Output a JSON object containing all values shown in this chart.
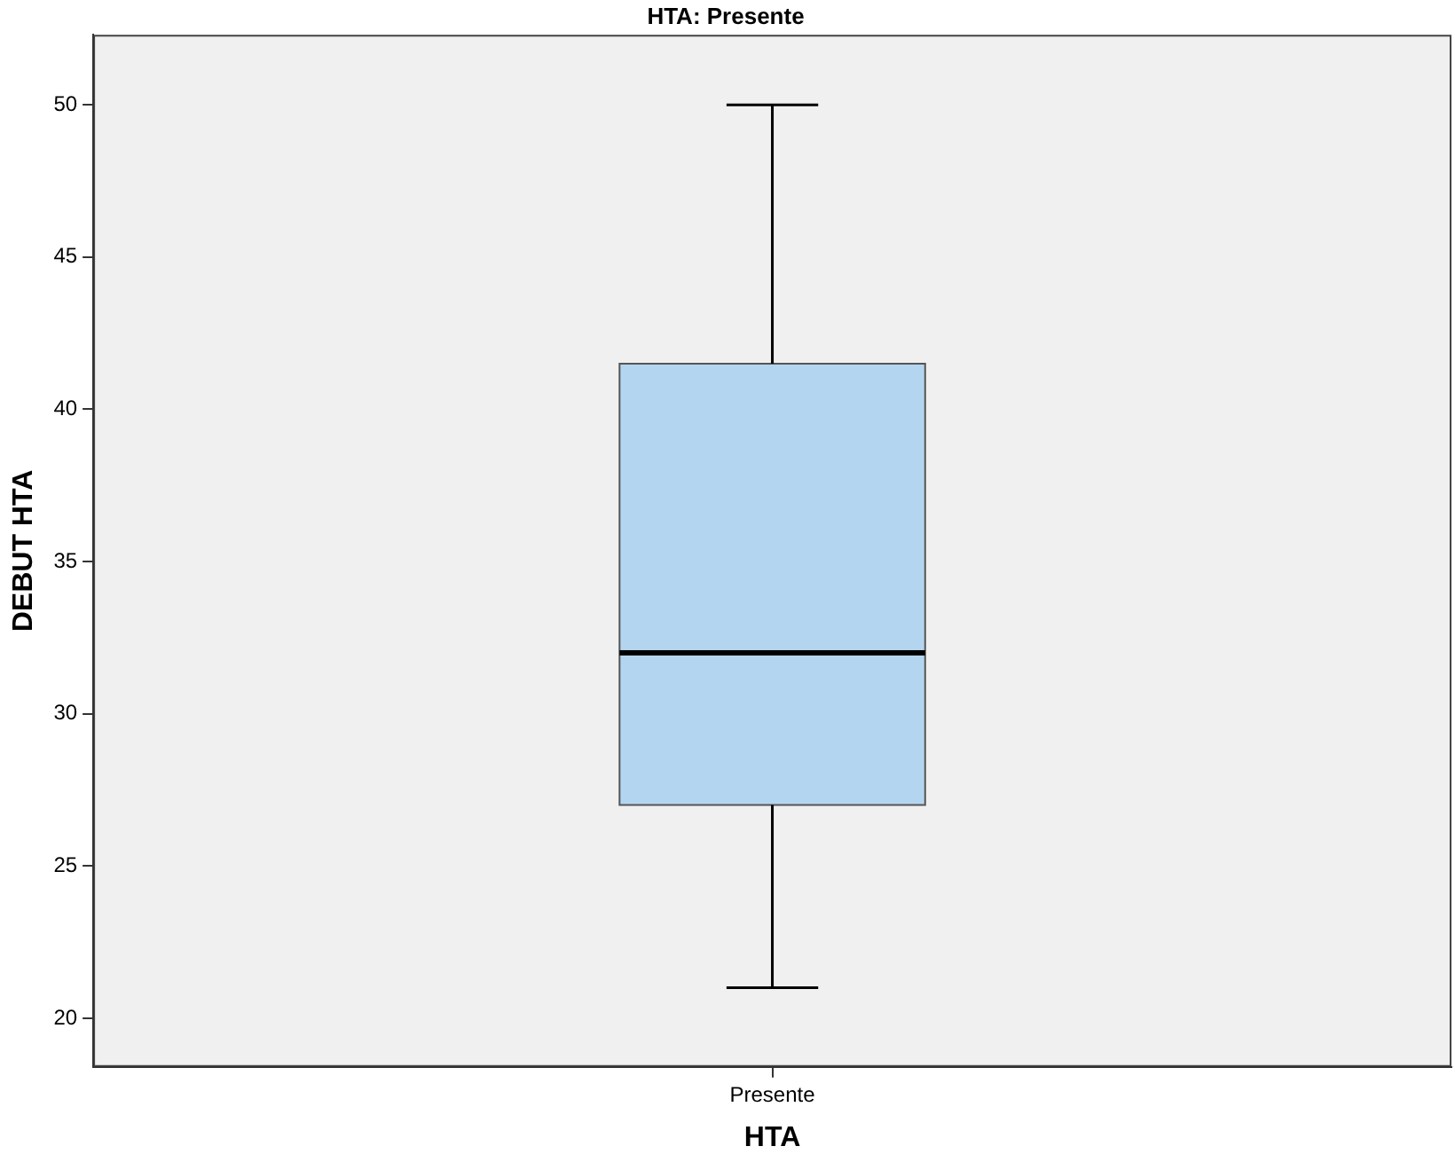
{
  "chart_data": {
    "type": "box",
    "title": "HTA: Presente",
    "xlabel": "HTA",
    "ylabel": "DEBUT HTA",
    "categories": [
      "Presente"
    ],
    "boxes": [
      {
        "low": 21,
        "q1": 27,
        "median": 32,
        "q3": 41.5,
        "high": 50
      }
    ],
    "color": "#b4d5f0",
    "ylim": [
      18.4,
      52.3
    ],
    "yticks": [
      20,
      25,
      30,
      35,
      40,
      45,
      50
    ],
    "grid": false,
    "legend": false
  }
}
